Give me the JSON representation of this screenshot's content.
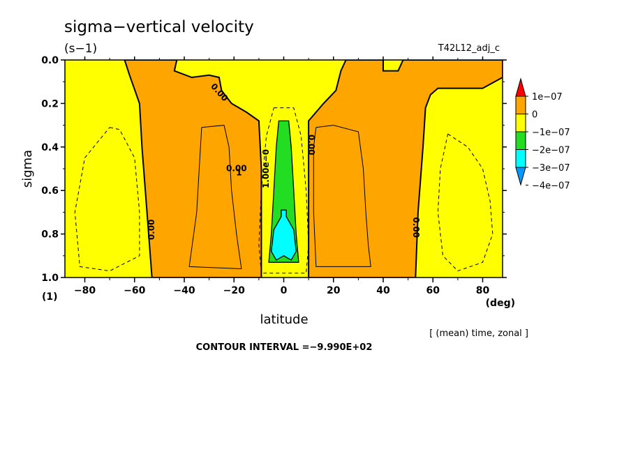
{
  "title": "sigma−vertical velocity",
  "units": "(s−1)",
  "run_name": "T42L12_adj_c",
  "footer_note": "[ (mean) time, zonal ]",
  "contour_interval": "CONTOUR INTERVAL =−9.990E+02",
  "chart_data": {
    "type": "heatmap",
    "xlabel": "latitude",
    "x_unit": "(deg)",
    "ylabel": "sigma",
    "y_unit": "(1)",
    "xlim": [
      -88,
      88
    ],
    "ylim": [
      1.0,
      0.0
    ],
    "y_inverted": true,
    "x_ticks": [
      -80,
      -60,
      -40,
      -20,
      0,
      20,
      40,
      60,
      80
    ],
    "x_tick_labels": [
      "−80",
      "−60",
      "−40",
      "−20",
      "0",
      "20",
      "40",
      "60",
      "80"
    ],
    "y_ticks": [
      0.0,
      0.2,
      0.4,
      0.6,
      0.8,
      1.0
    ],
    "y_tick_labels": [
      "0.0",
      "0.2",
      "0.4",
      "0.6",
      "0.8",
      "1.0"
    ],
    "colorbar": {
      "levels": [
        "1e−07",
        "0",
        "−1e−07",
        "−2e−07",
        "−3e−07",
        "−4e−07"
      ],
      "colors": [
        "#ff0000",
        "#ffa500",
        "#ffff00",
        "#22dd22",
        "#00ffff",
        "#0099ff"
      ]
    },
    "contour_labels": [
      "0.00",
      "0.00",
      "1.00e−0",
      "0.00",
      "0.00",
      "0.00",
      "1"
    ],
    "regions": [
      {
        "name": "positive-left",
        "color": "#ffa500",
        "points": [
          [
            -64,
            0.0
          ],
          [
            -43,
            0.0
          ],
          [
            -44,
            0.05
          ],
          [
            -37,
            0.08
          ],
          [
            -30,
            0.07
          ],
          [
            -26,
            0.08
          ],
          [
            -25,
            0.14
          ],
          [
            -21,
            0.2
          ],
          [
            -15,
            0.24
          ],
          [
            -10,
            0.28
          ],
          [
            -9,
            0.5
          ],
          [
            -9,
            1.0
          ],
          [
            -53,
            1.0
          ],
          [
            -55,
            0.7
          ],
          [
            -57,
            0.4
          ],
          [
            -58,
            0.2
          ],
          [
            -62,
            0.07
          ]
        ]
      },
      {
        "name": "positive-right",
        "color": "#ffa500",
        "points": [
          [
            10,
            0.28
          ],
          [
            13,
            0.24
          ],
          [
            16,
            0.2
          ],
          [
            21,
            0.14
          ],
          [
            23,
            0.05
          ],
          [
            25,
            0.0
          ],
          [
            40,
            0.0
          ],
          [
            40,
            0.05
          ],
          [
            46,
            0.05
          ],
          [
            48,
            0.0
          ],
          [
            88,
            0.0
          ],
          [
            88,
            0.08
          ],
          [
            80,
            0.13
          ],
          [
            70,
            0.13
          ],
          [
            62,
            0.13
          ],
          [
            59,
            0.16
          ],
          [
            57,
            0.22
          ],
          [
            56,
            0.4
          ],
          [
            54,
            0.7
          ],
          [
            53,
            1.0
          ],
          [
            10,
            1.0
          ]
        ]
      },
      {
        "name": "negative-center",
        "color": "#22dd22",
        "points": [
          [
            -2,
            0.28
          ],
          [
            2,
            0.28
          ],
          [
            3,
            0.4
          ],
          [
            4,
            0.6
          ],
          [
            5,
            0.8
          ],
          [
            6,
            0.93
          ],
          [
            -6,
            0.93
          ],
          [
            -5,
            0.8
          ],
          [
            -4,
            0.6
          ],
          [
            -3,
            0.4
          ]
        ]
      },
      {
        "name": "strong-negative-center",
        "color": "#00ffff",
        "points": [
          [
            -1,
            0.69
          ],
          [
            1,
            0.69
          ],
          [
            1,
            0.72
          ],
          [
            4,
            0.78
          ],
          [
            5,
            0.88
          ],
          [
            3,
            0.92
          ],
          [
            0,
            0.9
          ],
          [
            -3,
            0.92
          ],
          [
            -5,
            0.88
          ],
          [
            -4,
            0.78
          ],
          [
            -1,
            0.72
          ]
        ]
      }
    ],
    "solid_contours": [
      [
        [
          -33,
          0.31
        ],
        [
          -24,
          0.3
        ],
        [
          -22,
          0.4
        ],
        [
          -21,
          0.6
        ],
        [
          -19,
          0.8
        ],
        [
          -17,
          0.96
        ],
        [
          -38,
          0.95
        ],
        [
          -35,
          0.7
        ],
        [
          -34,
          0.5
        ],
        [
          -33,
          0.31
        ]
      ],
      [
        [
          13,
          0.31
        ],
        [
          20,
          0.3
        ],
        [
          30,
          0.33
        ],
        [
          32,
          0.5
        ],
        [
          33,
          0.7
        ],
        [
          34,
          0.85
        ],
        [
          35,
          0.95
        ],
        [
          13,
          0.95
        ],
        [
          12,
          0.7
        ],
        [
          12,
          0.4
        ],
        [
          13,
          0.31
        ]
      ]
    ],
    "dashed_contours": [
      [
        [
          -70,
          0.31
        ],
        [
          -66,
          0.32
        ],
        [
          -60,
          0.45
        ],
        [
          -58,
          0.7
        ],
        [
          -58,
          0.9
        ],
        [
          -70,
          0.97
        ],
        [
          -82,
          0.95
        ],
        [
          -84,
          0.7
        ],
        [
          -80,
          0.45
        ],
        [
          -70,
          0.31
        ]
      ],
      [
        [
          66,
          0.34
        ],
        [
          74,
          0.4
        ],
        [
          80,
          0.5
        ],
        [
          83,
          0.65
        ],
        [
          84,
          0.8
        ],
        [
          80,
          0.93
        ],
        [
          70,
          0.97
        ],
        [
          64,
          0.9
        ],
        [
          62,
          0.7
        ],
        [
          63,
          0.5
        ],
        [
          66,
          0.34
        ]
      ],
      [
        [
          -4,
          0.22
        ],
        [
          4,
          0.22
        ],
        [
          7,
          0.35
        ],
        [
          9,
          0.6
        ],
        [
          10,
          0.85
        ],
        [
          9,
          0.98
        ],
        [
          -9,
          0.98
        ],
        [
          -10,
          0.85
        ],
        [
          -9,
          0.6
        ],
        [
          -7,
          0.35
        ],
        [
          -4,
          0.22
        ]
      ]
    ]
  }
}
